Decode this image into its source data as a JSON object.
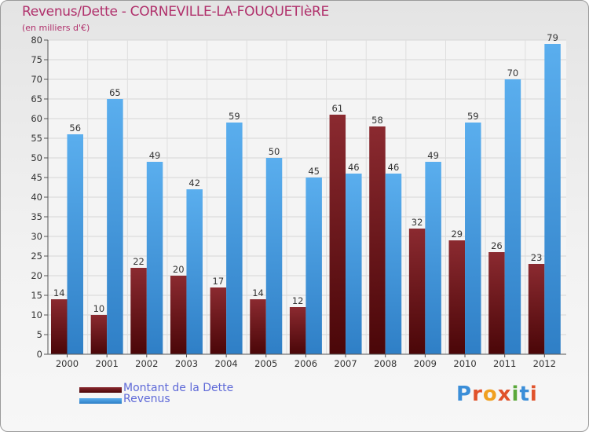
{
  "title": "Revenus/Dette - CORNEVILLE-LA-FOUQUETIèRE",
  "subtitle": "(en milliers d'€)",
  "legend": {
    "debt_label": "Montant de la Dette",
    "revenue_label": "Revenus"
  },
  "brand": {
    "text": "Proxiti"
  },
  "colors": {
    "debt": "#8b1a1f",
    "debt_dark": "#4a0608",
    "revenue": "#4aa2e8",
    "revenue_dark": "#1f6fb8",
    "title": "#b0306b"
  },
  "chart_data": {
    "type": "bar",
    "title": "Revenus/Dette - CORNEVILLE-LA-FOUQUETIèRE",
    "ylabel": "(en milliers d'€)",
    "xlabel": "",
    "categories": [
      "2000",
      "2001",
      "2002",
      "2003",
      "2004",
      "2005",
      "2006",
      "2007",
      "2008",
      "2009",
      "2010",
      "2011",
      "2012"
    ],
    "series": [
      {
        "name": "Montant de la Dette",
        "values": [
          14,
          10,
          22,
          20,
          17,
          14,
          12,
          61,
          58,
          32,
          29,
          26,
          23
        ]
      },
      {
        "name": "Revenus",
        "values": [
          56,
          65,
          49,
          42,
          59,
          50,
          45,
          46,
          46,
          49,
          59,
          70,
          79
        ]
      }
    ],
    "ylim": [
      0,
      80
    ],
    "yticks": [
      0,
      5,
      10,
      15,
      20,
      25,
      30,
      35,
      40,
      45,
      50,
      55,
      60,
      65,
      70,
      75,
      80
    ],
    "grid": true,
    "legend_position": "bottom-left"
  }
}
